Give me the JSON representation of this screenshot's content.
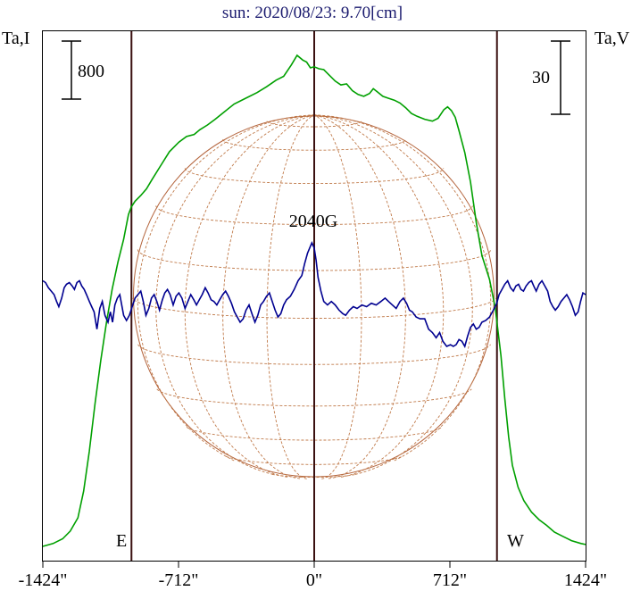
{
  "chart_data": {
    "type": "line",
    "title": "sun: 2020/08/23: 9.70[cm]",
    "left_axis_label": "Ta,I",
    "right_axis_label": "Ta,V",
    "left_scale_bar": "800",
    "right_scale_bar": "30",
    "x_unit": "arcsec",
    "xlim": [
      -1424,
      1424
    ],
    "x_ticks": [
      -1424,
      -712,
      0,
      712,
      1424
    ],
    "x_tick_labels": [
      "-1424\"",
      "-712\"",
      "0\"",
      "712\"",
      "1424\""
    ],
    "limb_markers": [
      {
        "x": -959,
        "label": "E"
      },
      {
        "x": 0,
        "label": ""
      },
      {
        "x": 959,
        "label": "W"
      }
    ],
    "annotations": [
      {
        "x": 0,
        "text": "2040G"
      }
    ],
    "solar_disk": {
      "radius_arcsec": 959,
      "grid": true
    },
    "series": [
      {
        "id": "intensity",
        "color": "#00a000",
        "points": [
          [
            -1424,
            0
          ],
          [
            -1370,
            30
          ],
          [
            -1320,
            80
          ],
          [
            -1280,
            160
          ],
          [
            -1240,
            300
          ],
          [
            -1210,
            580
          ],
          [
            -1180,
            1000
          ],
          [
            -1150,
            1500
          ],
          [
            -1120,
            1950
          ],
          [
            -1090,
            2350
          ],
          [
            -1060,
            2700
          ],
          [
            -1030,
            2980
          ],
          [
            -1000,
            3220
          ],
          [
            -975,
            3480
          ],
          [
            -960,
            3560
          ],
          [
            -940,
            3620
          ],
          [
            -910,
            3680
          ],
          [
            -880,
            3750
          ],
          [
            -850,
            3850
          ],
          [
            -810,
            3980
          ],
          [
            -760,
            4140
          ],
          [
            -710,
            4240
          ],
          [
            -670,
            4300
          ],
          [
            -630,
            4320
          ],
          [
            -600,
            4370
          ],
          [
            -560,
            4420
          ],
          [
            -520,
            4480
          ],
          [
            -470,
            4560
          ],
          [
            -420,
            4640
          ],
          [
            -360,
            4700
          ],
          [
            -300,
            4760
          ],
          [
            -250,
            4820
          ],
          [
            -200,
            4890
          ],
          [
            -160,
            4930
          ],
          [
            -120,
            5050
          ],
          [
            -90,
            5150
          ],
          [
            -60,
            5100
          ],
          [
            -40,
            5080
          ],
          [
            -20,
            5020
          ],
          [
            0,
            5030
          ],
          [
            25,
            5010
          ],
          [
            50,
            5000
          ],
          [
            80,
            4940
          ],
          [
            110,
            4880
          ],
          [
            140,
            4840
          ],
          [
            170,
            4850
          ],
          [
            200,
            4780
          ],
          [
            230,
            4740
          ],
          [
            260,
            4720
          ],
          [
            290,
            4750
          ],
          [
            310,
            4800
          ],
          [
            330,
            4770
          ],
          [
            360,
            4720
          ],
          [
            390,
            4700
          ],
          [
            420,
            4680
          ],
          [
            450,
            4650
          ],
          [
            480,
            4600
          ],
          [
            510,
            4540
          ],
          [
            540,
            4510
          ],
          [
            580,
            4480
          ],
          [
            620,
            4460
          ],
          [
            650,
            4490
          ],
          [
            680,
            4580
          ],
          [
            700,
            4610
          ],
          [
            720,
            4570
          ],
          [
            740,
            4500
          ],
          [
            760,
            4360
          ],
          [
            790,
            4130
          ],
          [
            820,
            3820
          ],
          [
            850,
            3400
          ],
          [
            880,
            3050
          ],
          [
            920,
            2800
          ],
          [
            950,
            2500
          ],
          [
            980,
            2000
          ],
          [
            1000,
            1550
          ],
          [
            1020,
            1150
          ],
          [
            1040,
            850
          ],
          [
            1070,
            620
          ],
          [
            1100,
            480
          ],
          [
            1140,
            360
          ],
          [
            1180,
            280
          ],
          [
            1220,
            220
          ],
          [
            1260,
            150
          ],
          [
            1300,
            110
          ],
          [
            1350,
            60
          ],
          [
            1400,
            30
          ],
          [
            1424,
            20
          ]
        ]
      },
      {
        "id": "polarization",
        "color": "#000090",
        "points": [
          [
            -1424,
            0
          ],
          [
            -1410,
            -1
          ],
          [
            -1395,
            -4
          ],
          [
            -1380,
            -6
          ],
          [
            -1365,
            -8
          ],
          [
            -1352,
            -12
          ],
          [
            -1340,
            -15
          ],
          [
            -1325,
            -10
          ],
          [
            -1312,
            -4
          ],
          [
            -1300,
            -2
          ],
          [
            -1285,
            -1
          ],
          [
            -1270,
            -3
          ],
          [
            -1258,
            -5
          ],
          [
            -1245,
            -1
          ],
          [
            -1232,
            0
          ],
          [
            -1220,
            -3
          ],
          [
            -1207,
            -5
          ],
          [
            -1195,
            -8
          ],
          [
            -1180,
            -12
          ],
          [
            -1168,
            -15
          ],
          [
            -1155,
            -18
          ],
          [
            -1140,
            -28
          ],
          [
            -1125,
            -16
          ],
          [
            -1112,
            -12
          ],
          [
            -1098,
            -20
          ],
          [
            -1082,
            -24
          ],
          [
            -1070,
            -18
          ],
          [
            -1058,
            -24
          ],
          [
            -1046,
            -14
          ],
          [
            -1033,
            -10
          ],
          [
            -1020,
            -8
          ],
          [
            -1000,
            -20
          ],
          [
            -985,
            -23
          ],
          [
            -970,
            -20
          ],
          [
            -955,
            -15
          ],
          [
            -940,
            -10
          ],
          [
            -925,
            -8
          ],
          [
            -910,
            -6
          ],
          [
            -897,
            -12
          ],
          [
            -883,
            -20
          ],
          [
            -868,
            -16
          ],
          [
            -854,
            -10
          ],
          [
            -840,
            -8
          ],
          [
            -826,
            -12
          ],
          [
            -812,
            -17
          ],
          [
            -797,
            -11
          ],
          [
            -784,
            -7
          ],
          [
            -770,
            -5
          ],
          [
            -756,
            -8
          ],
          [
            -740,
            -14
          ],
          [
            -725,
            -9
          ],
          [
            -710,
            -7
          ],
          [
            -694,
            -10
          ],
          [
            -678,
            -16
          ],
          [
            -663,
            -12
          ],
          [
            -648,
            -8
          ],
          [
            -632,
            -11
          ],
          [
            -618,
            -14
          ],
          [
            -603,
            -11
          ],
          [
            -588,
            -8
          ],
          [
            -572,
            -4
          ],
          [
            -557,
            -7
          ],
          [
            -541,
            -11
          ],
          [
            -526,
            -12
          ],
          [
            -511,
            -14
          ],
          [
            -496,
            -11
          ],
          [
            -480,
            -8
          ],
          [
            -465,
            -6
          ],
          [
            -450,
            -9
          ],
          [
            -434,
            -13
          ],
          [
            -419,
            -18
          ],
          [
            -404,
            -21
          ],
          [
            -389,
            -24
          ],
          [
            -373,
            -22
          ],
          [
            -358,
            -17
          ],
          [
            -342,
            -14
          ],
          [
            -327,
            -19
          ],
          [
            -311,
            -24
          ],
          [
            -296,
            -20
          ],
          [
            -281,
            -14
          ],
          [
            -266,
            -12
          ],
          [
            -250,
            -9
          ],
          [
            -235,
            -7
          ],
          [
            -220,
            -12
          ],
          [
            -205,
            -17
          ],
          [
            -190,
            -21
          ],
          [
            -175,
            -19
          ],
          [
            -160,
            -14
          ],
          [
            -145,
            -11
          ],
          [
            -125,
            -9
          ],
          [
            -105,
            -5
          ],
          [
            -85,
            0
          ],
          [
            -65,
            3
          ],
          [
            -50,
            10
          ],
          [
            -35,
            16
          ],
          [
            -20,
            20
          ],
          [
            -12,
            22
          ],
          [
            0,
            19
          ],
          [
            10,
            12
          ],
          [
            20,
            2
          ],
          [
            35,
            -6
          ],
          [
            50,
            -12
          ],
          [
            70,
            -14
          ],
          [
            90,
            -12
          ],
          [
            110,
            -14
          ],
          [
            130,
            -17
          ],
          [
            150,
            -19
          ],
          [
            165,
            -20
          ],
          [
            185,
            -17
          ],
          [
            205,
            -15
          ],
          [
            225,
            -16
          ],
          [
            250,
            -14
          ],
          [
            275,
            -15
          ],
          [
            300,
            -13
          ],
          [
            325,
            -14
          ],
          [
            350,
            -12
          ],
          [
            372,
            -10
          ],
          [
            390,
            -12
          ],
          [
            410,
            -14
          ],
          [
            430,
            -16
          ],
          [
            450,
            -12
          ],
          [
            468,
            -10
          ],
          [
            485,
            -13
          ],
          [
            500,
            -17
          ],
          [
            515,
            -18
          ],
          [
            535,
            -21
          ],
          [
            555,
            -22
          ],
          [
            580,
            -22
          ],
          [
            600,
            -28
          ],
          [
            620,
            -30
          ],
          [
            640,
            -33
          ],
          [
            658,
            -30
          ],
          [
            675,
            -35
          ],
          [
            695,
            -38
          ],
          [
            715,
            -37
          ],
          [
            730,
            -38
          ],
          [
            745,
            -37
          ],
          [
            760,
            -34
          ],
          [
            775,
            -35
          ],
          [
            790,
            -38
          ],
          [
            805,
            -32
          ],
          [
            820,
            -27
          ],
          [
            835,
            -25
          ],
          [
            850,
            -28
          ],
          [
            865,
            -27
          ],
          [
            880,
            -24
          ],
          [
            900,
            -23
          ],
          [
            920,
            -21
          ],
          [
            940,
            -17
          ],
          [
            958,
            -13
          ],
          [
            970,
            -8
          ],
          [
            985,
            -5
          ],
          [
            1000,
            -2
          ],
          [
            1015,
            0
          ],
          [
            1030,
            -4
          ],
          [
            1045,
            -6
          ],
          [
            1058,
            -3
          ],
          [
            1072,
            -2
          ],
          [
            1085,
            -5
          ],
          [
            1098,
            -6
          ],
          [
            1112,
            -3
          ],
          [
            1126,
            -1
          ],
          [
            1140,
            0
          ],
          [
            1152,
            -3
          ],
          [
            1165,
            -6
          ],
          [
            1180,
            -2
          ],
          [
            1195,
            0
          ],
          [
            1210,
            -3
          ],
          [
            1225,
            -6
          ],
          [
            1238,
            -12
          ],
          [
            1252,
            -15
          ],
          [
            1265,
            -17
          ],
          [
            1280,
            -15
          ],
          [
            1295,
            -12
          ],
          [
            1310,
            -10
          ],
          [
            1325,
            -8
          ],
          [
            1340,
            -11
          ],
          [
            1355,
            -15
          ],
          [
            1370,
            -20
          ],
          [
            1385,
            -18
          ],
          [
            1398,
            -12
          ],
          [
            1410,
            -7
          ],
          [
            1424,
            -8
          ]
        ]
      }
    ]
  }
}
